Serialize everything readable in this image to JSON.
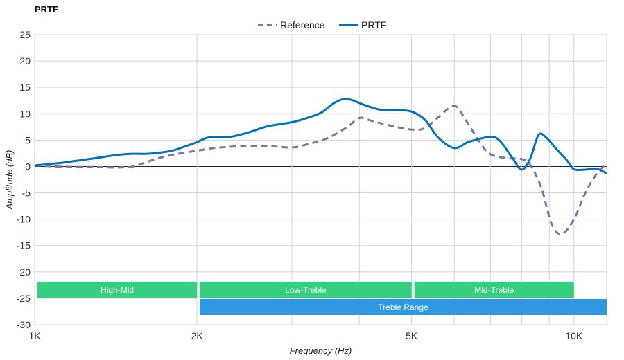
{
  "chart_data": {
    "type": "line",
    "title": "PRTF",
    "xlabel": "Frequency (Hz)",
    "ylabel": "Amplitude (dB)",
    "x_scale": "log",
    "xlim": [
      1000,
      11500
    ],
    "ylim": [
      -30,
      25
    ],
    "x_ticks": [
      {
        "value": 1000,
        "label": "1K"
      },
      {
        "value": 2000,
        "label": "2K"
      },
      {
        "value": 5000,
        "label": "5K"
      },
      {
        "value": 10000,
        "label": "10K"
      }
    ],
    "x_gridlines": [
      1000,
      2000,
      3000,
      4000,
      5000,
      6000,
      7000,
      8000,
      9000,
      10000
    ],
    "y_ticks": [
      25,
      20,
      15,
      10,
      5,
      0,
      -5,
      -10,
      -15,
      -20,
      -25,
      -30
    ],
    "grid": true,
    "legend_position": "top-center",
    "series": [
      {
        "name": "Reference",
        "color": "#7a76a8",
        "style": "dashed",
        "points": [
          [
            1000,
            0.2
          ],
          [
            1100,
            0
          ],
          [
            1200,
            -0.1
          ],
          [
            1300,
            -0.1
          ],
          [
            1400,
            -0.2
          ],
          [
            1500,
            -0.1
          ],
          [
            1550,
            0.2
          ],
          [
            1600,
            0.7
          ],
          [
            1700,
            1.6
          ],
          [
            1800,
            2.2
          ],
          [
            2000,
            3
          ],
          [
            2200,
            3.6
          ],
          [
            2500,
            3.9
          ],
          [
            2700,
            3.9
          ],
          [
            3000,
            3.6
          ],
          [
            3200,
            4.2
          ],
          [
            3500,
            5.4
          ],
          [
            3800,
            7.5
          ],
          [
            4000,
            9.2
          ],
          [
            4200,
            8.7
          ],
          [
            4500,
            7.9
          ],
          [
            5000,
            7
          ],
          [
            5300,
            7.3
          ],
          [
            5600,
            9.3
          ],
          [
            6000,
            11.5
          ],
          [
            6300,
            8.8
          ],
          [
            6700,
            4.5
          ],
          [
            7000,
            2.3
          ],
          [
            7500,
            1.6
          ],
          [
            8000,
            1.4
          ],
          [
            8300,
            0.3
          ],
          [
            8700,
            -4
          ],
          [
            9100,
            -11
          ],
          [
            9500,
            -12.8
          ],
          [
            10000,
            -10
          ],
          [
            10500,
            -5
          ],
          [
            11000,
            -1.5
          ],
          [
            11500,
            0.6
          ]
        ]
      },
      {
        "name": "PRTF",
        "color": "#0071bc",
        "style": "solid",
        "points": [
          [
            1000,
            0.2
          ],
          [
            1100,
            0.6
          ],
          [
            1200,
            1.1
          ],
          [
            1300,
            1.6
          ],
          [
            1400,
            2.1
          ],
          [
            1500,
            2.4
          ],
          [
            1600,
            2.4
          ],
          [
            1700,
            2.6
          ],
          [
            1800,
            3
          ],
          [
            1900,
            3.8
          ],
          [
            2000,
            4.6
          ],
          [
            2100,
            5.5
          ],
          [
            2300,
            5.6
          ],
          [
            2500,
            6.5
          ],
          [
            2700,
            7.6
          ],
          [
            3000,
            8.4
          ],
          [
            3200,
            9.2
          ],
          [
            3400,
            10.2
          ],
          [
            3600,
            12.1
          ],
          [
            3800,
            12.8
          ],
          [
            4100,
            11.6
          ],
          [
            4400,
            10.7
          ],
          [
            4700,
            10.7
          ],
          [
            5000,
            10.4
          ],
          [
            5300,
            8.8
          ],
          [
            5600,
            5.5
          ],
          [
            6000,
            3.5
          ],
          [
            6400,
            4.7
          ],
          [
            7000,
            5.6
          ],
          [
            7300,
            4.8
          ],
          [
            7700,
            1.5
          ],
          [
            8000,
            -0.6
          ],
          [
            8300,
            1.5
          ],
          [
            8600,
            6
          ],
          [
            8900,
            5.4
          ],
          [
            9300,
            3.2
          ],
          [
            9700,
            1.2
          ],
          [
            10000,
            -0.5
          ],
          [
            10500,
            -0.6
          ],
          [
            11000,
            -0.4
          ],
          [
            11500,
            -1.3
          ]
        ]
      }
    ],
    "bands": [
      {
        "name": "High-Mid",
        "from": 1000,
        "to": 2000,
        "row": 0,
        "color": "#35d07f"
      },
      {
        "name": "Low-Treble",
        "from": 2000,
        "to": 5000,
        "row": 0,
        "color": "#35d07f"
      },
      {
        "name": "Mid-Treble",
        "from": 5000,
        "to": 10000,
        "row": 0,
        "color": "#35d07f"
      },
      {
        "name": "Treble Range",
        "from": 2000,
        "to": 11500,
        "row": 1,
        "color": "#2f98e2"
      }
    ]
  }
}
